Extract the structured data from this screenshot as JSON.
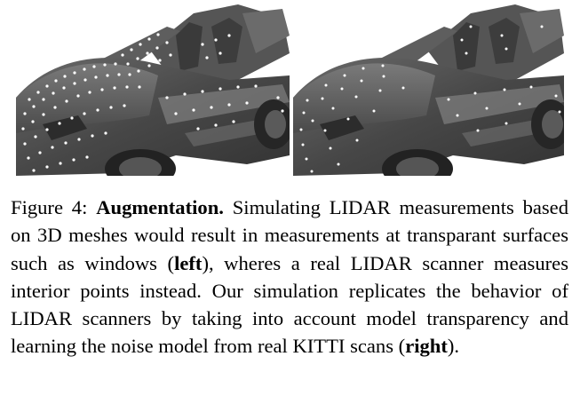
{
  "figure": {
    "panels": [
      {
        "id": "left",
        "variant": "simulated-on-transparent-surfaces"
      },
      {
        "id": "right",
        "variant": "interior-points-noise-model"
      }
    ],
    "colors": {
      "car_body": "#4a4a4a",
      "car_shadow": "#2a2a2a",
      "lidar_points": "#ffffff"
    }
  },
  "caption": {
    "label": "Figure 4:",
    "title": "Augmentation.",
    "part1": "Simulating LIDAR measure­ments based on 3D meshes would result in measurements at transparant surfaces such as windows (",
    "left_word": "left",
    "part2": "), wheres a real LIDAR scanner measures interior points instead. Our simulation replicates the behavior of LIDAR scanners by tak­ing into account model transparency and learning the noise model from real KITTI scans (",
    "right_word": "right",
    "part3": ")."
  }
}
